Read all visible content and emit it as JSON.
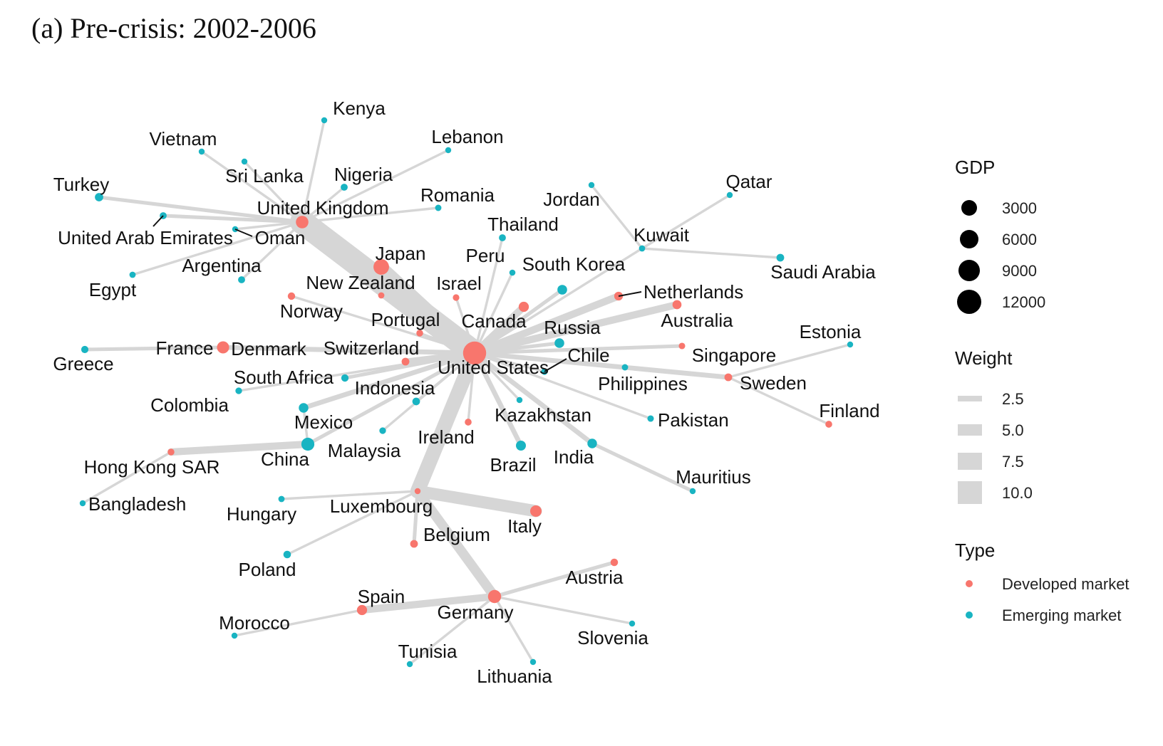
{
  "title": "(a) Pre-crisis: 2002-2006",
  "colors": {
    "developed": "#F8766D",
    "emerging": "#19B4C2",
    "edge": "#D6D6D6"
  },
  "nodes": [
    {
      "id": "us",
      "label": "United States",
      "type": "developed",
      "gdp": 13000
    },
    {
      "id": "uk",
      "label": "United Kingdom",
      "type": "developed",
      "gdp": 2400
    },
    {
      "id": "jp",
      "label": "Japan",
      "type": "developed",
      "gdp": 4600
    },
    {
      "id": "de",
      "label": "Germany",
      "type": "developed",
      "gdp": 2800
    },
    {
      "id": "fr",
      "label": "France",
      "type": "developed",
      "gdp": 2200
    },
    {
      "id": "it",
      "label": "Italy",
      "type": "developed",
      "gdp": 1800
    },
    {
      "id": "es",
      "label": "Spain",
      "type": "developed",
      "gdp": 1200
    },
    {
      "id": "ca",
      "label": "Canada",
      "type": "developed",
      "gdp": 1200
    },
    {
      "id": "au",
      "label": "Australia",
      "type": "developed",
      "gdp": 750
    },
    {
      "id": "nl",
      "label": "Netherlands",
      "type": "developed",
      "gdp": 650
    },
    {
      "id": "se",
      "label": "Sweden",
      "type": "developed",
      "gdp": 380
    },
    {
      "id": "ch",
      "label": "Switzerland",
      "type": "developed",
      "gdp": 380
    },
    {
      "id": "be",
      "label": "Belgium",
      "type": "developed",
      "gdp": 380
    },
    {
      "id": "at",
      "label": "Austria",
      "type": "developed",
      "gdp": 320
    },
    {
      "id": "no",
      "label": "Norway",
      "type": "developed",
      "gdp": 310
    },
    {
      "id": "dk",
      "label": "Denmark",
      "type": "developed",
      "gdp": 260
    },
    {
      "id": "fi",
      "label": "Finland",
      "type": "developed",
      "gdp": 200
    },
    {
      "id": "ie",
      "label": "Ireland",
      "type": "developed",
      "gdp": 200
    },
    {
      "id": "pt",
      "label": "Portugal",
      "type": "developed",
      "gdp": 190
    },
    {
      "id": "hk",
      "label": "Hong Kong SAR",
      "type": "developed",
      "gdp": 180
    },
    {
      "id": "sg",
      "label": "Singapore",
      "type": "developed",
      "gdp": 140
    },
    {
      "id": "nz",
      "label": "New Zealand",
      "type": "developed",
      "gdp": 110
    },
    {
      "id": "il",
      "label": "Israel",
      "type": "developed",
      "gdp": 150
    },
    {
      "id": "lu",
      "label": "Luxembourg",
      "type": "developed",
      "gdp": 40
    },
    {
      "id": "cn",
      "label": "China",
      "type": "emerging",
      "gdp": 2700
    },
    {
      "id": "br",
      "label": "Brazil",
      "type": "emerging",
      "gdp": 1100
    },
    {
      "id": "in",
      "label": "India",
      "type": "emerging",
      "gdp": 950
    },
    {
      "id": "mx",
      "label": "Mexico",
      "type": "emerging",
      "gdp": 960
    },
    {
      "id": "kr",
      "label": "South Korea",
      "type": "emerging",
      "gdp": 1000
    },
    {
      "id": "ru",
      "label": "Russia",
      "type": "emerging",
      "gdp": 990
    },
    {
      "id": "tr",
      "label": "Turkey",
      "type": "emerging",
      "gdp": 550
    },
    {
      "id": "gr",
      "label": "Greece",
      "type": "emerging",
      "gdp": 270
    },
    {
      "id": "sa",
      "label": "Saudi Arabia",
      "type": "emerging",
      "gdp": 370
    },
    {
      "id": "za",
      "label": "South Africa",
      "type": "emerging",
      "gdp": 290
    },
    {
      "id": "ar",
      "label": "Argentina",
      "type": "emerging",
      "gdp": 230
    },
    {
      "id": "id",
      "label": "Indonesia",
      "type": "emerging",
      "gdp": 360
    },
    {
      "id": "pl",
      "label": "Poland",
      "type": "emerging",
      "gdp": 340
    },
    {
      "id": "ng",
      "label": "Nigeria",
      "type": "emerging",
      "gdp": 230
    },
    {
      "id": "th",
      "label": "Thailand",
      "type": "emerging",
      "gdp": 220
    },
    {
      "id": "my",
      "label": "Malaysia",
      "type": "emerging",
      "gdp": 160
    },
    {
      "id": "eg",
      "label": "Egypt",
      "type": "emerging",
      "gdp": 110
    },
    {
      "id": "cl",
      "label": "Chile",
      "type": "emerging",
      "gdp": 150
    },
    {
      "id": "ph",
      "label": "Philippines",
      "type": "emerging",
      "gdp": 120
    },
    {
      "id": "co",
      "label": "Colombia",
      "type": "emerging",
      "gdp": 160
    },
    {
      "id": "pk",
      "label": "Pakistan",
      "type": "emerging",
      "gdp": 140
    },
    {
      "id": "ae",
      "label": "United Arab Emirates",
      "type": "emerging",
      "gdp": 220
    },
    {
      "id": "ro",
      "label": "Romania",
      "type": "emerging",
      "gdp": 120
    },
    {
      "id": "pe",
      "label": "Peru",
      "type": "emerging",
      "gdp": 90
    },
    {
      "id": "hu",
      "label": "Hungary",
      "type": "emerging",
      "gdp": 110
    },
    {
      "id": "kw",
      "label": "Kuwait",
      "type": "emerging",
      "gdp": 100
    },
    {
      "id": "qa",
      "label": "Qatar",
      "type": "emerging",
      "gdp": 60
    },
    {
      "id": "kz",
      "label": "Kazakhstan",
      "type": "emerging",
      "gdp": 80
    },
    {
      "id": "ma",
      "label": "Morocco",
      "type": "emerging",
      "gdp": 65
    },
    {
      "id": "vn",
      "label": "Vietnam",
      "type": "emerging",
      "gdp": 60
    },
    {
      "id": "bd",
      "label": "Bangladesh",
      "type": "emerging",
      "gdp": 70
    },
    {
      "id": "om",
      "label": "Oman",
      "type": "emerging",
      "gdp": 37
    },
    {
      "id": "ke",
      "label": "Kenya",
      "type": "emerging",
      "gdp": 25
    },
    {
      "id": "lk",
      "label": "Sri Lanka",
      "type": "emerging",
      "gdp": 28
    },
    {
      "id": "lb",
      "label": "Lebanon",
      "type": "emerging",
      "gdp": 22
    },
    {
      "id": "jo",
      "label": "Jordan",
      "type": "emerging",
      "gdp": 15
    },
    {
      "id": "ee",
      "label": "Estonia",
      "type": "emerging",
      "gdp": 17
    },
    {
      "id": "si",
      "label": "Slovenia",
      "type": "emerging",
      "gdp": 39
    },
    {
      "id": "lt",
      "label": "Lithuania",
      "type": "emerging",
      "gdp": 30
    },
    {
      "id": "tn",
      "label": "Tunisia",
      "type": "emerging",
      "gdp": 31
    },
    {
      "id": "mu",
      "label": "Mauritius",
      "type": "emerging",
      "gdp": 7
    }
  ],
  "edges": [
    {
      "from": "us",
      "to": "uk",
      "weight": 10
    },
    {
      "from": "us",
      "to": "jp",
      "weight": 5
    },
    {
      "from": "us",
      "to": "lu",
      "weight": 6
    },
    {
      "from": "us",
      "to": "ca",
      "weight": 3
    },
    {
      "from": "us",
      "to": "nl",
      "weight": 3
    },
    {
      "from": "us",
      "to": "au",
      "weight": 3
    },
    {
      "from": "us",
      "to": "ch",
      "weight": 2.5
    },
    {
      "from": "us",
      "to": "dk",
      "weight": 2
    },
    {
      "from": "us",
      "to": "mx",
      "weight": 2
    },
    {
      "from": "us",
      "to": "br",
      "weight": 2
    },
    {
      "from": "us",
      "to": "in",
      "weight": 2
    },
    {
      "from": "us",
      "to": "kr",
      "weight": 1.5
    },
    {
      "from": "us",
      "to": "ru",
      "weight": 1.5
    },
    {
      "from": "us",
      "to": "sg",
      "weight": 1.5
    },
    {
      "from": "us",
      "to": "se",
      "weight": 2
    },
    {
      "from": "us",
      "to": "kw",
      "weight": 1
    },
    {
      "from": "us",
      "to": "nz",
      "weight": 1
    },
    {
      "from": "us",
      "to": "no",
      "weight": 1
    },
    {
      "from": "us",
      "to": "pt",
      "weight": 1
    },
    {
      "from": "us",
      "to": "il",
      "weight": 1
    },
    {
      "from": "us",
      "to": "pe",
      "weight": 1
    },
    {
      "from": "us",
      "to": "th",
      "weight": 1
    },
    {
      "from": "us",
      "to": "cl",
      "weight": 1
    },
    {
      "from": "us",
      "to": "ph",
      "weight": 1
    },
    {
      "from": "us",
      "to": "kz",
      "weight": 1
    },
    {
      "from": "us",
      "to": "pk",
      "weight": 1
    },
    {
      "from": "us",
      "to": "ie",
      "weight": 1
    },
    {
      "from": "us",
      "to": "id",
      "weight": 1
    },
    {
      "from": "us",
      "to": "my",
      "weight": 1
    },
    {
      "from": "us",
      "to": "za",
      "weight": 1.5
    },
    {
      "from": "us",
      "to": "co",
      "weight": 1
    },
    {
      "from": "us",
      "to": "cn",
      "weight": 1.5
    },
    {
      "from": "uk",
      "to": "tr",
      "weight": 1.5
    },
    {
      "from": "uk",
      "to": "ae",
      "weight": 1.5
    },
    {
      "from": "uk",
      "to": "om",
      "weight": 1
    },
    {
      "from": "uk",
      "to": "eg",
      "weight": 1
    },
    {
      "from": "uk",
      "to": "ar",
      "weight": 1
    },
    {
      "from": "uk",
      "to": "vn",
      "weight": 1
    },
    {
      "from": "uk",
      "to": "lk",
      "weight": 1
    },
    {
      "from": "uk",
      "to": "ke",
      "weight": 1
    },
    {
      "from": "uk",
      "to": "ng",
      "weight": 1
    },
    {
      "from": "uk",
      "to": "lb",
      "weight": 1
    },
    {
      "from": "uk",
      "to": "ro",
      "weight": 1
    },
    {
      "from": "fr",
      "to": "gr",
      "weight": 1.5
    },
    {
      "from": "fr",
      "to": "dk",
      "weight": 1.5
    },
    {
      "from": "cn",
      "to": "hk",
      "weight": 3
    },
    {
      "from": "cn",
      "to": "mx",
      "weight": 1
    },
    {
      "from": "hk",
      "to": "bd",
      "weight": 1
    },
    {
      "from": "lu",
      "to": "it",
      "weight": 5
    },
    {
      "from": "lu",
      "to": "hu",
      "weight": 1
    },
    {
      "from": "lu",
      "to": "pl",
      "weight": 1
    },
    {
      "from": "lu",
      "to": "be",
      "weight": 1.5
    },
    {
      "from": "lu",
      "to": "de",
      "weight": 4
    },
    {
      "from": "de",
      "to": "es",
      "weight": 3
    },
    {
      "from": "de",
      "to": "at",
      "weight": 1.5
    },
    {
      "from": "de",
      "to": "si",
      "weight": 1
    },
    {
      "from": "de",
      "to": "lt",
      "weight": 1
    },
    {
      "from": "de",
      "to": "tn",
      "weight": 1
    },
    {
      "from": "es",
      "to": "ma",
      "weight": 1
    },
    {
      "from": "kw",
      "to": "qa",
      "weight": 1
    },
    {
      "from": "kw",
      "to": "sa",
      "weight": 1
    },
    {
      "from": "kw",
      "to": "jo",
      "weight": 1
    },
    {
      "from": "se",
      "to": "ee",
      "weight": 1
    },
    {
      "from": "se",
      "to": "fi",
      "weight": 1
    },
    {
      "from": "in",
      "to": "mu",
      "weight": 1.5
    }
  ],
  "legend": {
    "gdp": {
      "title": "GDP",
      "values": [
        "3000",
        "6000",
        "9000",
        "12000"
      ]
    },
    "weight": {
      "title": "Weight",
      "values": [
        "2.5",
        "5.0",
        "7.5",
        "10.0"
      ]
    },
    "type": {
      "title": "Type",
      "developed_label": "Developed market",
      "emerging_label": "Emerging market"
    }
  }
}
